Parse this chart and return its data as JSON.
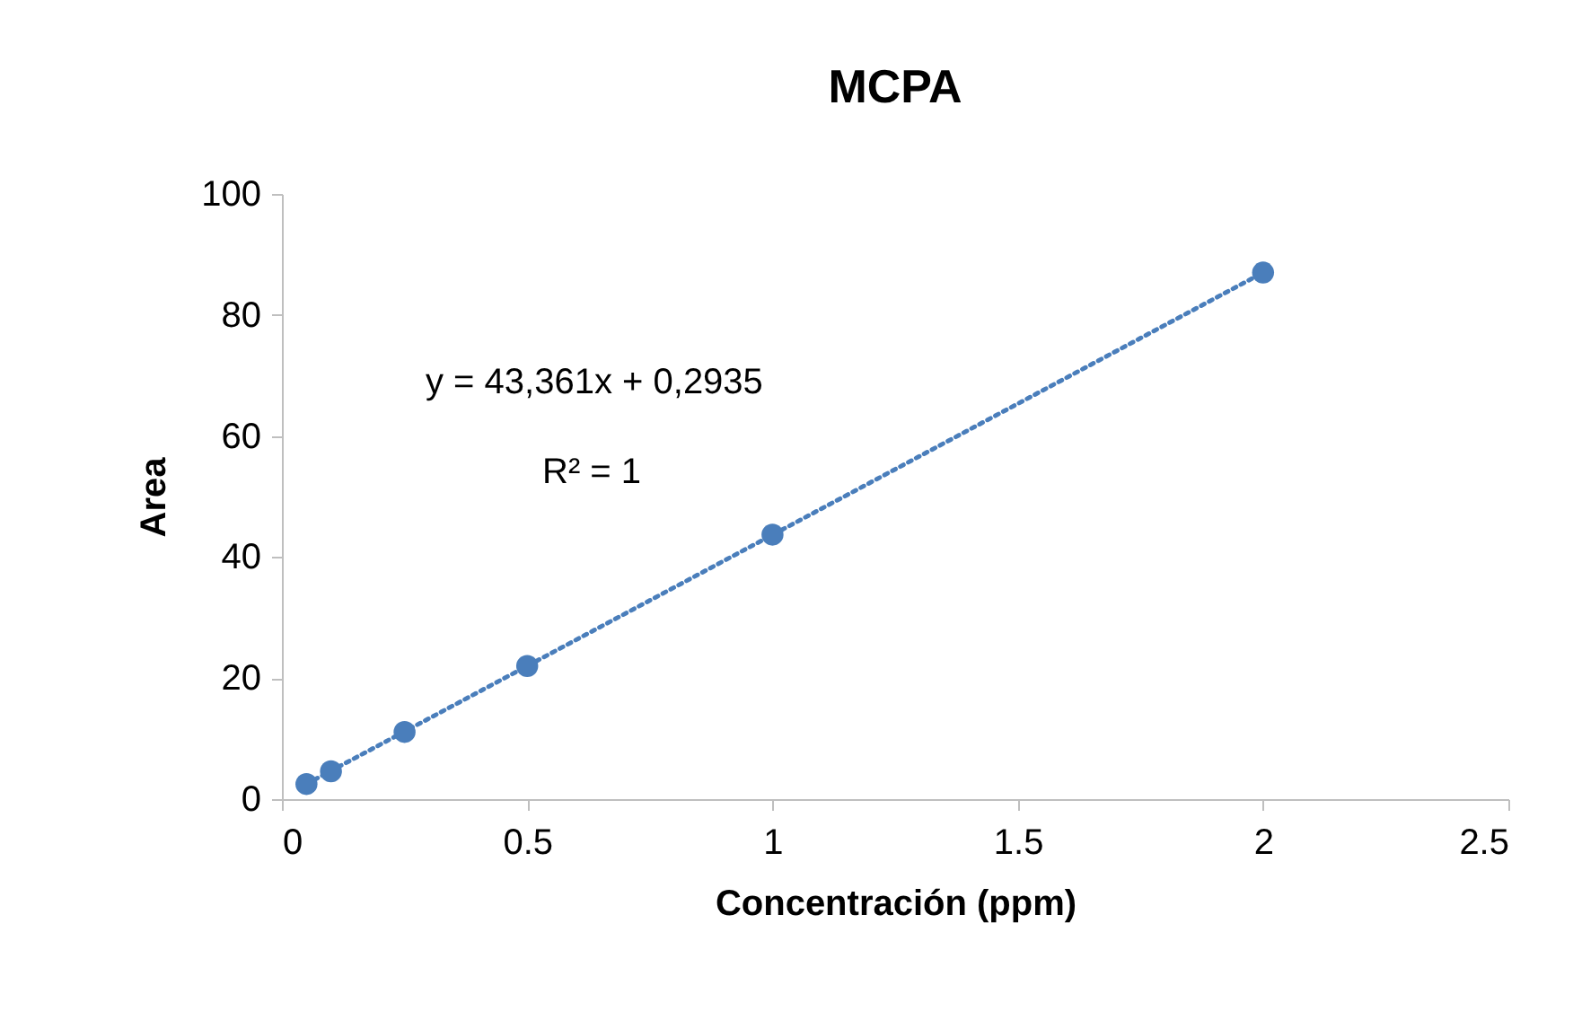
{
  "chart_data": {
    "type": "scatter",
    "title": "MCPA",
    "xlabel": "Concentración (ppm)",
    "ylabel": "Area",
    "x": [
      0.05,
      0.1,
      0.25,
      0.5,
      1,
      2
    ],
    "series": [
      {
        "type": "line",
        "color": "#4a7ebb",
        "line_style": "dotted",
        "marker": "none",
        "x": [
          0.05,
          2
        ],
        "values": [
          2.5,
          87
        ]
      },
      {
        "color": "#4a7ebb",
        "marker": "circle",
        "values": [
          2.5,
          4.6,
          11.1,
          22,
          43.7,
          87
        ]
      }
    ],
    "annotations": [
      "y = 43,361x + 0,2935",
      "R² = 1"
    ],
    "xlim": [
      0,
      2.5
    ],
    "xticks": [
      0,
      0.5,
      1,
      1.5,
      2,
      2.5
    ],
    "ylim": [
      0,
      100
    ],
    "yticks": [
      0,
      20,
      40,
      60,
      80,
      100
    ],
    "grid": false
  }
}
